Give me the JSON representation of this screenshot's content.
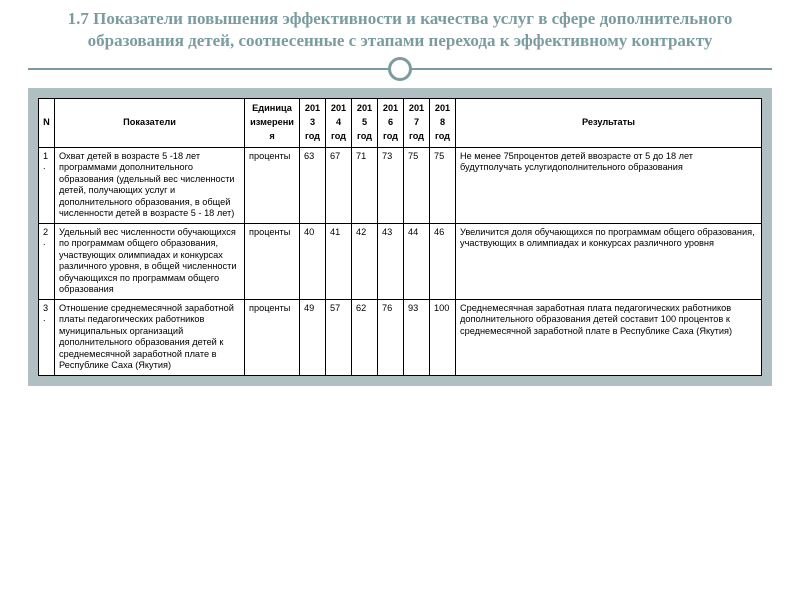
{
  "title_color": "#7a9ca0",
  "divider_color": "#7a9ca0",
  "table_bg": "#b0c0c2",
  "title": "1.7 Показатели повышения эффективности и качества услуг в сфере дополнительного образования детей, соотнесенные с этапами перехода к эффективному контракту",
  "headers": {
    "n": "N",
    "indicator": "Показатели",
    "unit": "Единица измерения",
    "y2013": "2013 год",
    "y2014": "2014 год",
    "y2015": "2015 год",
    "y2016": "2016 год",
    "y2017": "2017 год",
    "y2018": "2018 год",
    "result": "Результаты"
  },
  "rows": [
    {
      "n": "1.",
      "indicator": "Охват детей в возрасте 5  -18    лет программами дополнительного образования\n(удельный  вес  численности детей, получающих    услуг и дополнительного\n\nобразования,  в    общей численности детей    в возрасте 5 - 18 лет)",
      "unit": "проценты",
      "y2013": "63",
      "y2014": "67",
      "y2015": "71",
      "y2016": "73",
      "y2017": "75",
      "y2018": "75",
      "result": "Не  менее   75процентов детей ввозрасте от 5  до\n18 лет  будутполучать услугидополнительного образования"
    },
    {
      "n": "2.",
      "indicator": "Удельный  вес  численности обучающихся  по  программам общего образования, участвующих  олимпиадах и конкурсах        различного уровня, в общей численности\nобучающихся  по  программам общего образования",
      "unit": "проценты",
      "y2013": "40",
      "y2014": "41",
      "y2015": "42",
      "y2016": "43",
      "y2017": "44",
      "y2018": "46",
      "result": "Увеличится   доля обучающихся   по программам общего образования, участвующих    в олимпиадах и конкурсах\nразличного уровня"
    },
    {
      "n": "3.",
      "indicator": "Отношение    среднемесячной заработной           платы педагогических   работников муниципальных  организаций дополнительного образования детей к среднемесячной заработной   плате в Республике Саха (Якутия)",
      "unit": "проценты",
      "y2013": "49",
      "y2014": "57",
      "y2015": "62",
      "y2016": "76",
      "y2017": "93",
      "y2018": "100",
      "result": "Среднемесячная   заработная плата педагогических\nработников дополнительного образования детей составит     100 процентов  к среднемесячной заработной  плате в Республике Саха (Якутия)"
    }
  ]
}
